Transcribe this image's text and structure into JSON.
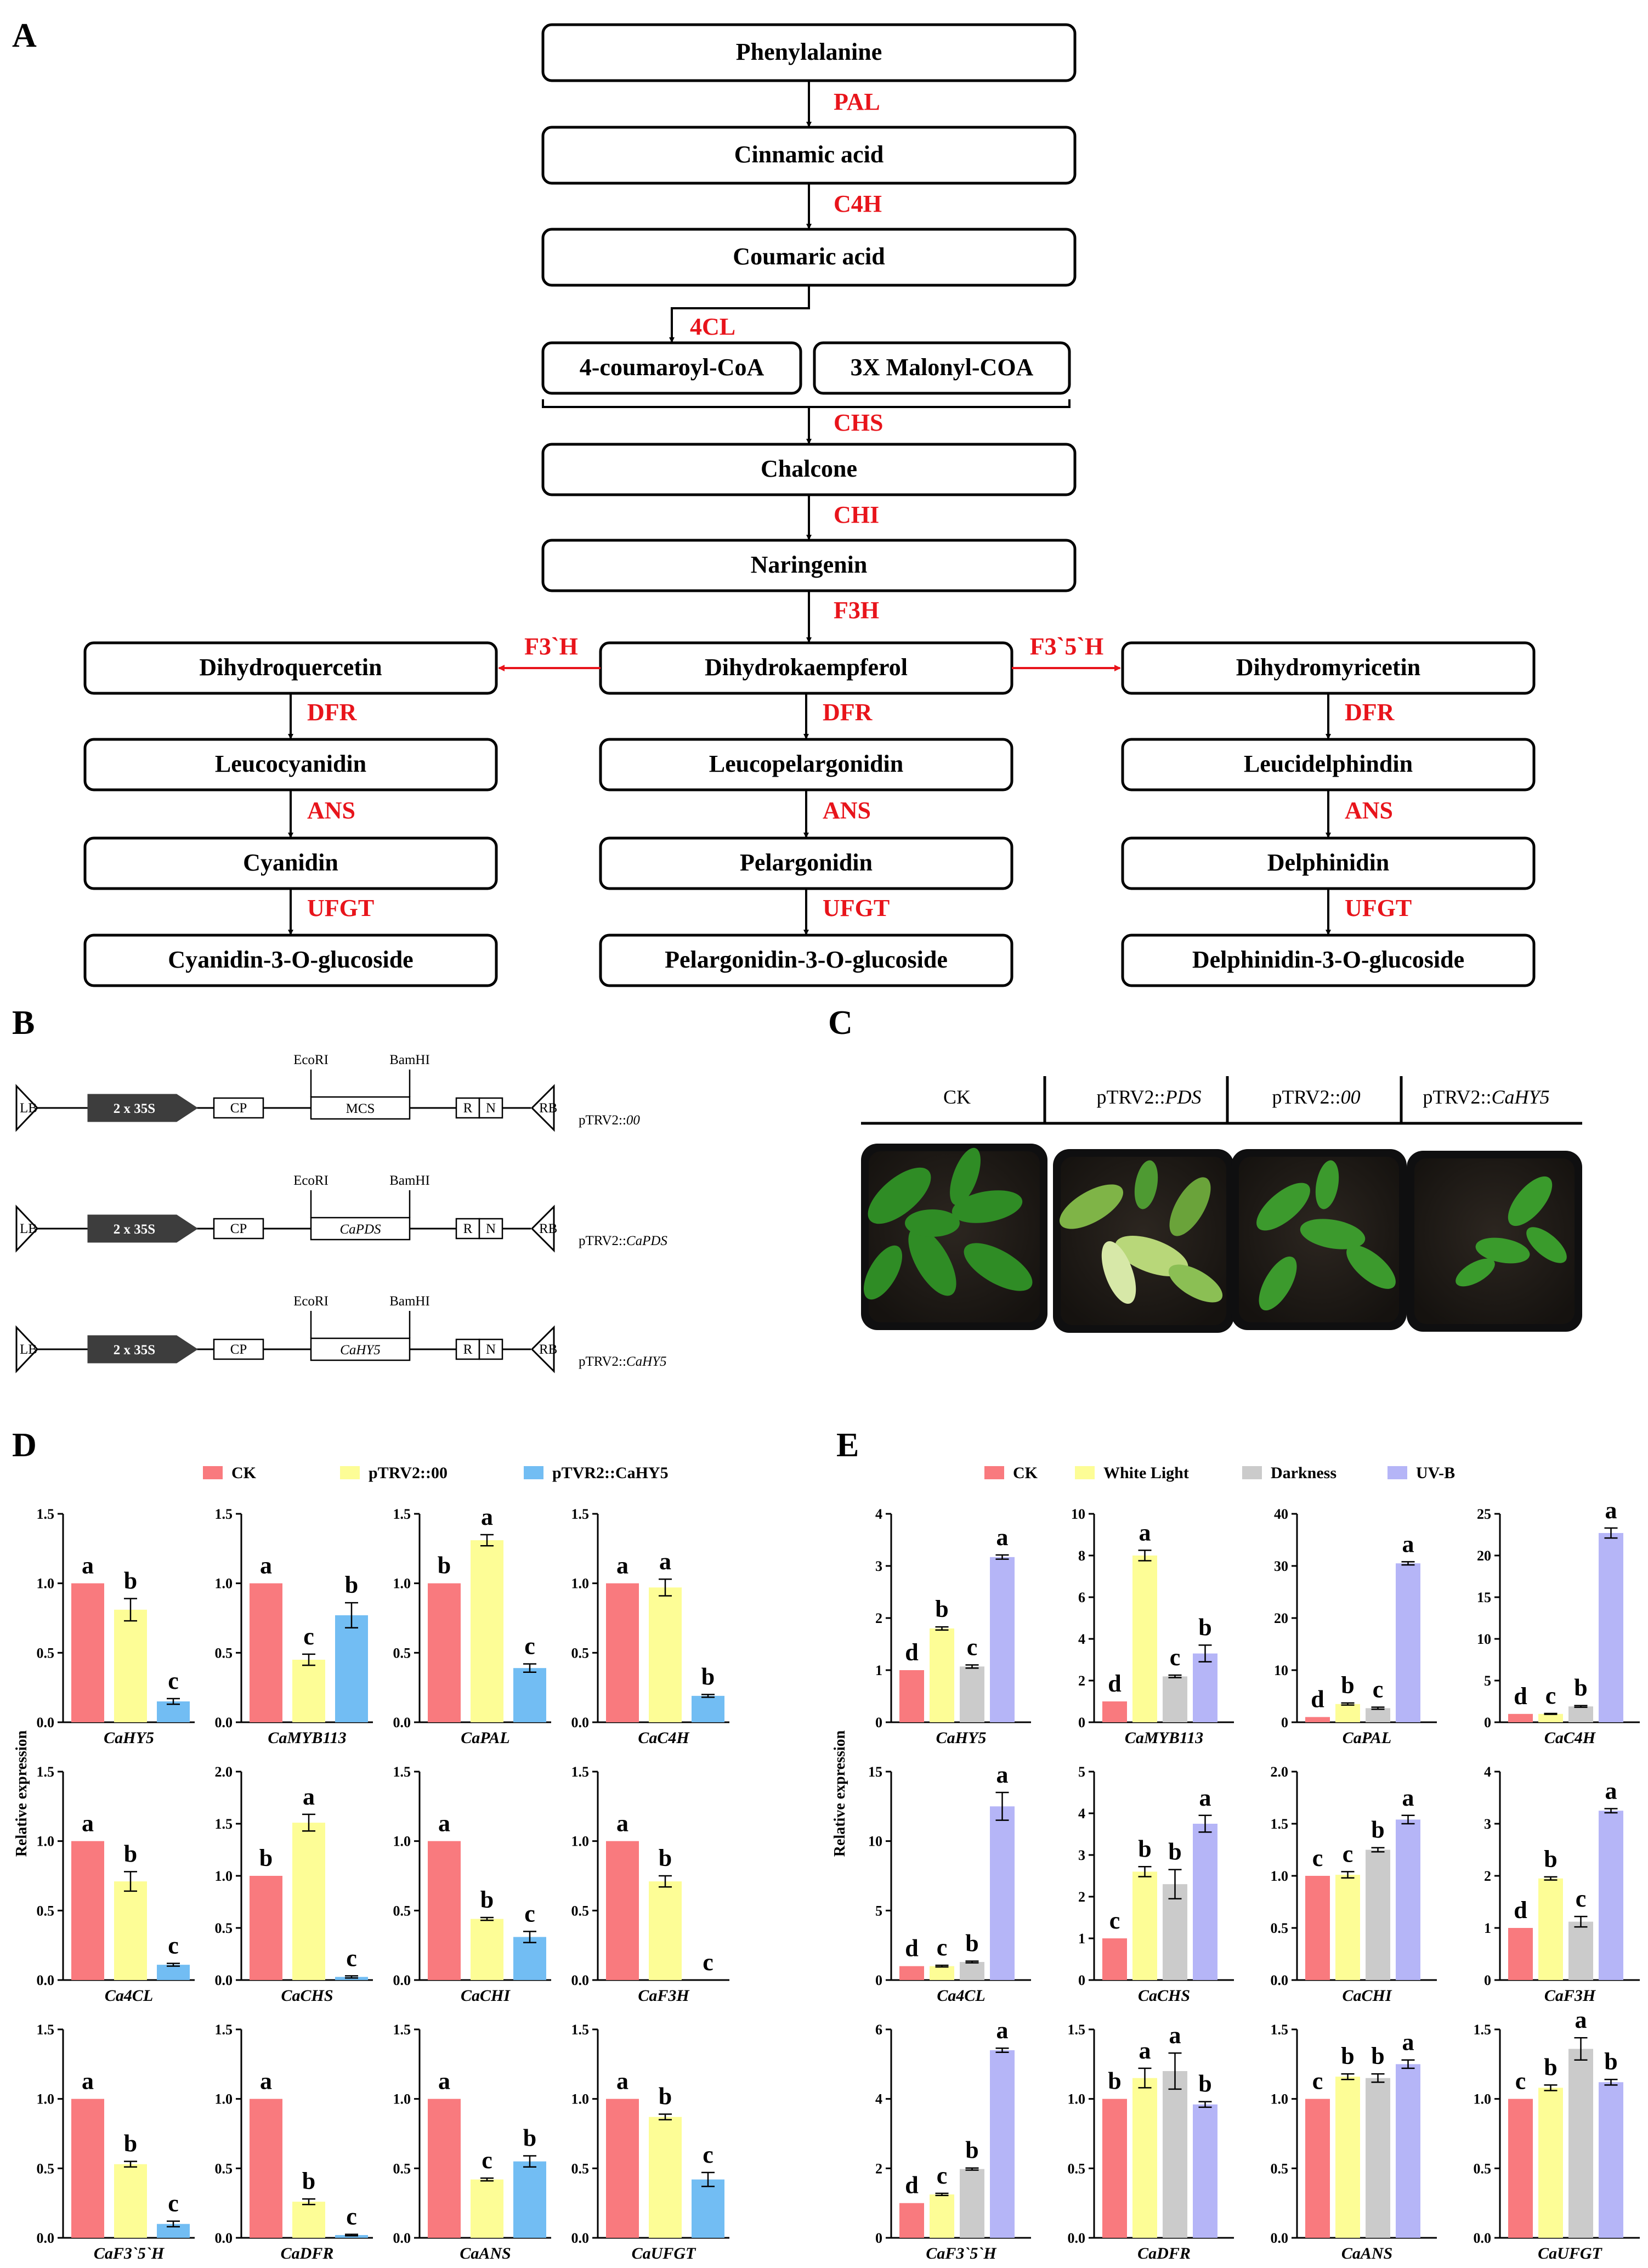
{
  "figure": {
    "panel_labels": {
      "A": "A",
      "B": "B",
      "C": "C",
      "D": "D",
      "E": "E"
    },
    "y_axis_label": "Relative expression"
  },
  "pathway": {
    "nodes": [
      {
        "id": "phe",
        "label": "Phenylalanine"
      },
      {
        "id": "cin",
        "label": "Cinnamic acid"
      },
      {
        "id": "cou",
        "label": "Coumaric acid"
      },
      {
        "id": "coa",
        "label": "4-coumaroyl-CoA"
      },
      {
        "id": "mal",
        "label": "3X Malonyl-COA"
      },
      {
        "id": "cha",
        "label": "Chalcone"
      },
      {
        "id": "nar",
        "label": "Naringenin"
      },
      {
        "id": "dhk",
        "label": "Dihydrokaempferol"
      },
      {
        "id": "dhq",
        "label": "Dihydroquercetin"
      },
      {
        "id": "dhm",
        "label": "Dihydromyricetin"
      },
      {
        "id": "lcy",
        "label": "Leucocyanidin"
      },
      {
        "id": "lpe",
        "label": "Leucopelargonidin"
      },
      {
        "id": "lde",
        "label": "Leucidelphindin"
      },
      {
        "id": "cya",
        "label": "Cyanidin"
      },
      {
        "id": "pel",
        "label": "Pelargonidin"
      },
      {
        "id": "del",
        "label": "Delphinidin"
      },
      {
        "id": "c3g",
        "label": "Cyanidin-3-O-glucoside"
      },
      {
        "id": "p3g",
        "label": "Pelargonidin-3-O-glucoside"
      },
      {
        "id": "d3g",
        "label": "Delphinidin-3-O-glucoside"
      }
    ],
    "enzymes": {
      "pal": "PAL",
      "c4h": "C4H",
      "cl4": "4CL",
      "chs": "CHS",
      "chi": "CHI",
      "f3h": "F3H",
      "f3ph": "F3`H",
      "f35h": "F3`5`H",
      "dfr": "DFR",
      "ans": "ANS",
      "ufgt": "UFGT"
    }
  },
  "vectors": {
    "constructs": [
      {
        "name_prefix": "pTRV2::",
        "name_italic": "00",
        "insert": "MCS",
        "insert_italic": false
      },
      {
        "name_prefix": "pTRV2::",
        "name_italic": "CaPDS",
        "insert": "CaPDS",
        "insert_italic": true
      },
      {
        "name_prefix": "pTRV2::",
        "name_italic": "CaHY5",
        "insert": "CaHY5",
        "insert_italic": true
      }
    ],
    "parts": {
      "lb": "LB",
      "rb": "RB",
      "promoter": "2 x 35S",
      "cp": "CP",
      "r": "R",
      "n": "N",
      "site1": "EcoRI",
      "site2": "BamHI"
    }
  },
  "photo": {
    "treatments": [
      {
        "prefix": "CK",
        "italic": ""
      },
      {
        "prefix": "pTRV2::",
        "italic": "PDS"
      },
      {
        "prefix": "pTRV2::",
        "italic": "00"
      },
      {
        "prefix": "pTRV2::",
        "italic": "CaHY5"
      }
    ]
  },
  "chart_data": [
    {
      "panel": "D",
      "type": "bar",
      "series_names": [
        "CK",
        "pTRV2::00",
        "pTVR2::CaHY5"
      ],
      "colors": [
        "#f97a7e",
        "#fdfd96",
        "#72bdf3"
      ],
      "ylabel": "Relative expression",
      "subplots": [
        {
          "gene": "CaHY5",
          "ylim": [
            0,
            1.5
          ],
          "ticks": [
            "0.0",
            "0.5",
            "1.0",
            "1.5"
          ],
          "values": [
            1.0,
            0.81,
            0.15
          ],
          "errors": [
            0,
            0.08,
            0.02
          ],
          "letters": [
            "a",
            "b",
            "c"
          ]
        },
        {
          "gene": "CaMYB113",
          "ylim": [
            0,
            1.5
          ],
          "ticks": [
            "0.0",
            "0.5",
            "1.0",
            "1.5"
          ],
          "values": [
            1.0,
            0.45,
            0.77
          ],
          "errors": [
            0,
            0.04,
            0.09
          ],
          "letters": [
            "a",
            "c",
            "b"
          ]
        },
        {
          "gene": "CaPAL",
          "ylim": [
            0,
            1.5
          ],
          "ticks": [
            "0.0",
            "0.5",
            "1.0",
            "1.5"
          ],
          "values": [
            1.0,
            1.31,
            0.39
          ],
          "errors": [
            0,
            0.04,
            0.03
          ],
          "letters": [
            "b",
            "a",
            "c"
          ]
        },
        {
          "gene": "CaC4H",
          "ylim": [
            0,
            1.5
          ],
          "ticks": [
            "0.0",
            "0.5",
            "1.0",
            "1.5"
          ],
          "values": [
            1.0,
            0.97,
            0.19
          ],
          "errors": [
            0,
            0.06,
            0.01
          ],
          "letters": [
            "a",
            "a",
            "b"
          ]
        },
        {
          "gene": "Ca4CL",
          "ylim": [
            0,
            1.5
          ],
          "ticks": [
            "0.0",
            "0.5",
            "1.0",
            "1.5"
          ],
          "values": [
            1.0,
            0.71,
            0.11
          ],
          "errors": [
            0,
            0.07,
            0.01
          ],
          "letters": [
            "a",
            "b",
            "c"
          ]
        },
        {
          "gene": "CaCHS",
          "ylim": [
            0,
            2.0
          ],
          "ticks": [
            "0.0",
            "0.5",
            "1.0",
            "1.5",
            "2.0"
          ],
          "values": [
            1.0,
            1.51,
            0.03
          ],
          "errors": [
            0,
            0.08,
            0.01
          ],
          "letters": [
            "b",
            "a",
            "c"
          ]
        },
        {
          "gene": "CaCHI",
          "ylim": [
            0,
            1.5
          ],
          "ticks": [
            "0.0",
            "0.5",
            "1.0",
            "1.5"
          ],
          "values": [
            1.0,
            0.44,
            0.31
          ],
          "errors": [
            0,
            0.01,
            0.04
          ],
          "letters": [
            "a",
            "b",
            "c"
          ]
        },
        {
          "gene": "CaF3H",
          "ylim": [
            0,
            1.5
          ],
          "ticks": [
            "0.0",
            "0.5",
            "1.0",
            "1.5"
          ],
          "values": [
            1.0,
            0.71,
            0.0
          ],
          "errors": [
            0,
            0.04,
            0
          ],
          "letters": [
            "a",
            "b",
            "c"
          ]
        },
        {
          "gene": "CaF3`5`H",
          "ylim": [
            0,
            1.5
          ],
          "ticks": [
            "0.0",
            "0.5",
            "1.0",
            "1.5"
          ],
          "values": [
            1.0,
            0.53,
            0.1
          ],
          "errors": [
            0,
            0.02,
            0.02
          ],
          "letters": [
            "a",
            "b",
            "c"
          ]
        },
        {
          "gene": "CaDFR",
          "ylim": [
            0,
            1.5
          ],
          "ticks": [
            "0.0",
            "0.5",
            "1.0",
            "1.5"
          ],
          "values": [
            1.0,
            0.26,
            0.02
          ],
          "errors": [
            0,
            0.02,
            0.005
          ],
          "letters": [
            "a",
            "b",
            "c"
          ]
        },
        {
          "gene": "CaANS",
          "ylim": [
            0,
            1.5
          ],
          "ticks": [
            "0.0",
            "0.5",
            "1.0",
            "1.5"
          ],
          "values": [
            1.0,
            0.42,
            0.55
          ],
          "errors": [
            0,
            0.01,
            0.04
          ],
          "letters": [
            "a",
            "c",
            "b"
          ]
        },
        {
          "gene": "CaUFGT",
          "ylim": [
            0,
            1.5
          ],
          "ticks": [
            "0.0",
            "0.5",
            "1.0",
            "1.5"
          ],
          "values": [
            1.0,
            0.87,
            0.42
          ],
          "errors": [
            0,
            0.02,
            0.05
          ],
          "letters": [
            "a",
            "b",
            "c"
          ]
        }
      ]
    },
    {
      "panel": "E",
      "type": "bar",
      "series_names": [
        "CK",
        "White Light",
        "Darkness",
        "UV-B"
      ],
      "colors": [
        "#f97a7e",
        "#fdfd96",
        "#cbcbcb",
        "#b5b5f7"
      ],
      "ylabel": "Relative expression",
      "subplots": [
        {
          "gene": "CaHY5",
          "ylim": [
            0,
            4
          ],
          "ticks": [
            "0",
            "1",
            "2",
            "3",
            "4"
          ],
          "values": [
            1.0,
            1.8,
            1.07,
            3.17
          ],
          "errors": [
            0,
            0.03,
            0.03,
            0.04
          ],
          "letters": [
            "d",
            "b",
            "c",
            "a"
          ]
        },
        {
          "gene": "CaMYB113",
          "ylim": [
            0,
            10
          ],
          "ticks": [
            "0",
            "2",
            "4",
            "6",
            "8",
            "10"
          ],
          "values": [
            1.0,
            8.0,
            2.2,
            3.3
          ],
          "errors": [
            0,
            0.25,
            0.06,
            0.4
          ],
          "letters": [
            "d",
            "a",
            "c",
            "b"
          ]
        },
        {
          "gene": "CaPAL",
          "ylim": [
            0,
            40
          ],
          "ticks": [
            "0",
            "10",
            "20",
            "30",
            "40"
          ],
          "values": [
            1.0,
            3.5,
            2.7,
            30.5
          ],
          "errors": [
            0,
            0.2,
            0.2,
            0.3
          ],
          "letters": [
            "d",
            "b",
            "c",
            "a"
          ]
        },
        {
          "gene": "CaC4H",
          "ylim": [
            0,
            25
          ],
          "ticks": [
            "0",
            "5",
            "10",
            "15",
            "20",
            "25"
          ],
          "values": [
            1.0,
            1.0,
            1.9,
            22.7
          ],
          "errors": [
            0,
            0.05,
            0.1,
            0.6
          ],
          "letters": [
            "d",
            "c",
            "b",
            "a"
          ]
        },
        {
          "gene": "Ca4CL",
          "ylim": [
            0,
            15
          ],
          "ticks": [
            "0",
            "5",
            "10",
            "15"
          ],
          "values": [
            1.0,
            1.0,
            1.3,
            12.5
          ],
          "errors": [
            0,
            0.06,
            0.06,
            1.0
          ],
          "letters": [
            "d",
            "c",
            "b",
            "a"
          ]
        },
        {
          "gene": "CaCHS",
          "ylim": [
            0,
            5
          ],
          "ticks": [
            "0",
            "1",
            "2",
            "3",
            "4",
            "5"
          ],
          "values": [
            1.0,
            2.6,
            2.3,
            3.75
          ],
          "errors": [
            0,
            0.12,
            0.35,
            0.2
          ],
          "letters": [
            "c",
            "b",
            "b",
            "a"
          ]
        },
        {
          "gene": "CaCHI",
          "ylim": [
            0,
            2.0
          ],
          "ticks": [
            "0.0",
            "0.5",
            "1.0",
            "1.5",
            "2.0"
          ],
          "values": [
            1.0,
            1.01,
            1.25,
            1.54
          ],
          "errors": [
            0,
            0.03,
            0.02,
            0.04
          ],
          "letters": [
            "c",
            "c",
            "b",
            "a"
          ]
        },
        {
          "gene": "CaF3H",
          "ylim": [
            0,
            4
          ],
          "ticks": [
            "0",
            "1",
            "2",
            "3",
            "4"
          ],
          "values": [
            1.0,
            1.95,
            1.12,
            3.25
          ],
          "errors": [
            0,
            0.03,
            0.1,
            0.04
          ],
          "letters": [
            "d",
            "b",
            "c",
            "a"
          ]
        },
        {
          "gene": "CaF3`5`H",
          "ylim": [
            0,
            6
          ],
          "ticks": [
            "0",
            "2",
            "4",
            "6"
          ],
          "values": [
            1.0,
            1.25,
            1.98,
            5.4
          ],
          "errors": [
            0,
            0.03,
            0.03,
            0.06
          ],
          "letters": [
            "d",
            "c",
            "b",
            "a"
          ]
        },
        {
          "gene": "CaDFR",
          "ylim": [
            0,
            1.5
          ],
          "ticks": [
            "0.0",
            "0.5",
            "1.0",
            "1.5"
          ],
          "values": [
            1.0,
            1.15,
            1.2,
            0.96
          ],
          "errors": [
            0,
            0.07,
            0.13,
            0.02
          ],
          "letters": [
            "b",
            "a",
            "a",
            "b"
          ]
        },
        {
          "gene": "CaANS",
          "ylim": [
            0,
            1.5
          ],
          "ticks": [
            "0.0",
            "0.5",
            "1.0",
            "1.5"
          ],
          "values": [
            1.0,
            1.16,
            1.15,
            1.25
          ],
          "errors": [
            0,
            0.02,
            0.03,
            0.03
          ],
          "letters": [
            "c",
            "b",
            "b",
            "a"
          ]
        },
        {
          "gene": "CaUFGT",
          "ylim": [
            0,
            1.5
          ],
          "ticks": [
            "0.0",
            "0.5",
            "1.0",
            "1.5"
          ],
          "values": [
            1.0,
            1.08,
            1.36,
            1.12
          ],
          "errors": [
            0,
            0.02,
            0.08,
            0.02
          ],
          "letters": [
            "c",
            "b",
            "a",
            "b"
          ]
        }
      ]
    }
  ]
}
